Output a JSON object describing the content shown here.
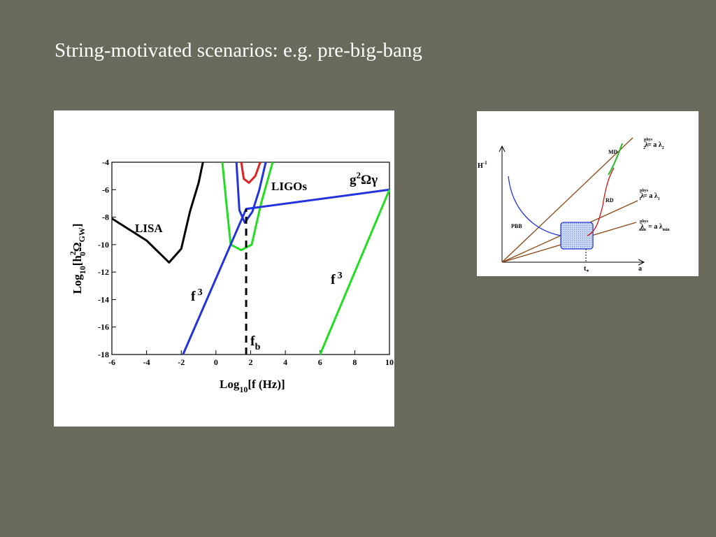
{
  "slide_title": "String-motivated scenarios: e.g. pre-big-bang",
  "chart_data": {
    "type": "line",
    "xlabel": [
      "Log",
      "10",
      "[f (Hz)]"
    ],
    "ylabel": [
      "Log",
      "10",
      "[h",
      "2",
      "0",
      "Ω",
      "GW",
      "]"
    ],
    "xlim": [
      -6,
      10
    ],
    "ylim": [
      -18,
      -4
    ],
    "xticks": [
      -6,
      -4,
      -2,
      0,
      2,
      4,
      6,
      8,
      10
    ],
    "yticks": [
      -18,
      -16,
      -14,
      -12,
      -10,
      -8,
      -6,
      -4
    ],
    "annotations": [
      [
        "LISA"
      ],
      [
        "LIGOs"
      ],
      [
        "g",
        "2",
        "Ωγ"
      ],
      [
        "f",
        "3"
      ],
      [
        "f",
        "3"
      ],
      [
        "f",
        "b"
      ]
    ],
    "series": [
      {
        "color": "#000000",
        "x": [
          -6,
          -4,
          -2.7,
          -2,
          -1.5,
          -1,
          -0.75
        ],
        "values": [
          -8.1,
          -9.7,
          -11.3,
          -10.3,
          -7.6,
          -5.5,
          -4
        ]
      },
      {
        "color": "#22dd22",
        "x": [
          0.37,
          0.6,
          0.85,
          1.45,
          2.06,
          2.6,
          3.27
        ],
        "values": [
          -4,
          -7,
          -10,
          -10.4,
          -10,
          -7,
          -4
        ]
      },
      {
        "color": "#2233dd",
        "x": [
          1.18,
          1.35,
          1.66,
          2.1,
          2.5,
          2.87
        ],
        "values": [
          -4,
          -7.5,
          -8.4,
          -7.6,
          -6,
          -4
        ]
      },
      {
        "color": "#dd2222",
        "x": [
          1.46,
          1.6,
          1.9,
          2.27,
          2.55
        ],
        "values": [
          -4,
          -5.2,
          -5.5,
          -5,
          -4
        ]
      },
      {
        "color": "#2233dd",
        "x": [
          -1.9,
          1.74,
          10
        ],
        "values": [
          -18,
          -7.4,
          -6
        ]
      },
      {
        "color": "#22dd22",
        "x": [
          6,
          10
        ],
        "values": [
          -18,
          -6
        ]
      },
      {
        "color": "#000000",
        "dash": true,
        "x": [
          1.74,
          1.74
        ],
        "values": [
          -18,
          -7.4
        ]
      }
    ]
  },
  "diagram": {
    "y_axis": [
      "H",
      "-1"
    ],
    "x_axis": "a",
    "t_star": [
      "t",
      "*"
    ],
    "regions": [
      "PBB",
      "RD",
      "MD"
    ],
    "lambdas": [
      [
        "λ",
        "phys",
        "2",
        "= a λ",
        "2"
      ],
      [
        "λ",
        "phys",
        "1",
        "= a λ",
        "1"
      ],
      [
        "λ",
        "phys",
        "min",
        "= a λ",
        "min"
      ]
    ]
  }
}
